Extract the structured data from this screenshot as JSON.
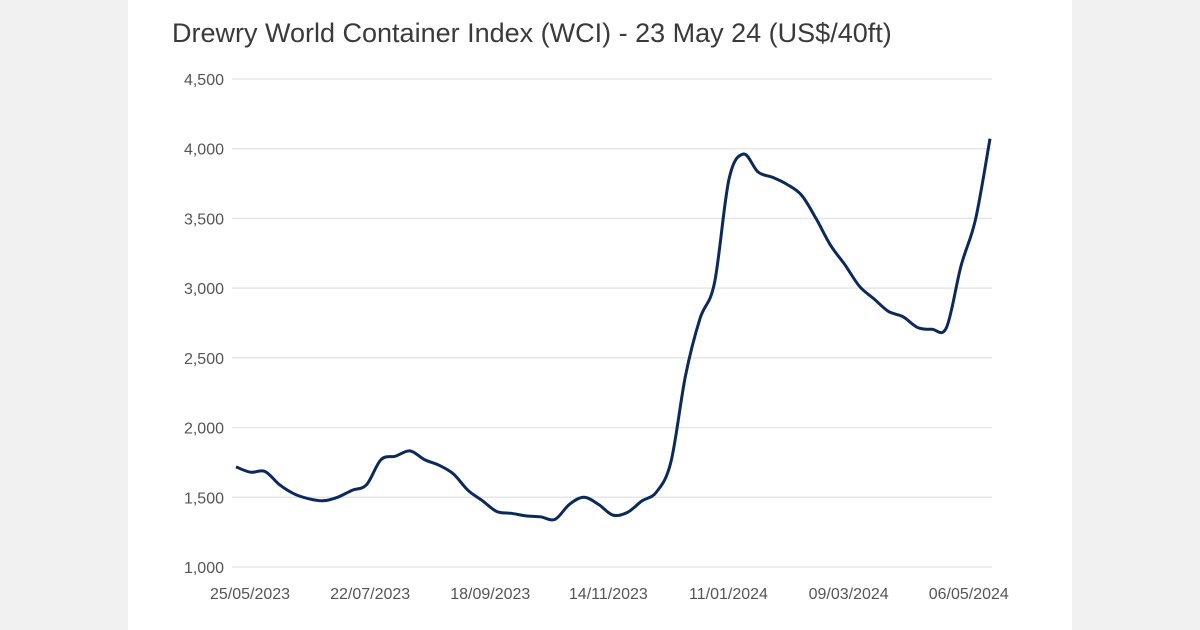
{
  "chart_data": {
    "type": "line",
    "title": "Drewry World Container Index (WCI) - 23 May 24 (US$/40ft)",
    "xlabel": "",
    "ylabel": "",
    "ylim": [
      1000,
      4500
    ],
    "yticks": [
      "1,000",
      "1,500",
      "2,000",
      "2,500",
      "3,000",
      "3,500",
      "4,000",
      "4,500"
    ],
    "ytick_values": [
      1000,
      1500,
      2000,
      2500,
      3000,
      3500,
      4000,
      4500
    ],
    "xticks": [
      "25/05/2023",
      "22/07/2023",
      "18/09/2023",
      "14/11/2023",
      "11/01/2024",
      "09/03/2024",
      "06/05/2024"
    ],
    "x_start": "2023-05-25",
    "x_end": "2024-05-23",
    "x_interval": "weekly",
    "grid": true,
    "legend": "none",
    "line_color": "#0b2a5b",
    "values": [
      1718,
      1680,
      1685,
      1590,
      1525,
      1490,
      1475,
      1500,
      1550,
      1590,
      1770,
      1795,
      1833,
      1770,
      1730,
      1667,
      1550,
      1475,
      1397,
      1385,
      1367,
      1360,
      1342,
      1450,
      1500,
      1449,
      1372,
      1392,
      1474,
      1538,
      1756,
      2372,
      2782,
      3038,
      3782,
      3962,
      3833,
      3795,
      3744,
      3667,
      3500,
      3308,
      3167,
      3013,
      2923,
      2833,
      2795,
      2718,
      2705,
      2718,
      3159,
      3493,
      4072
    ]
  }
}
